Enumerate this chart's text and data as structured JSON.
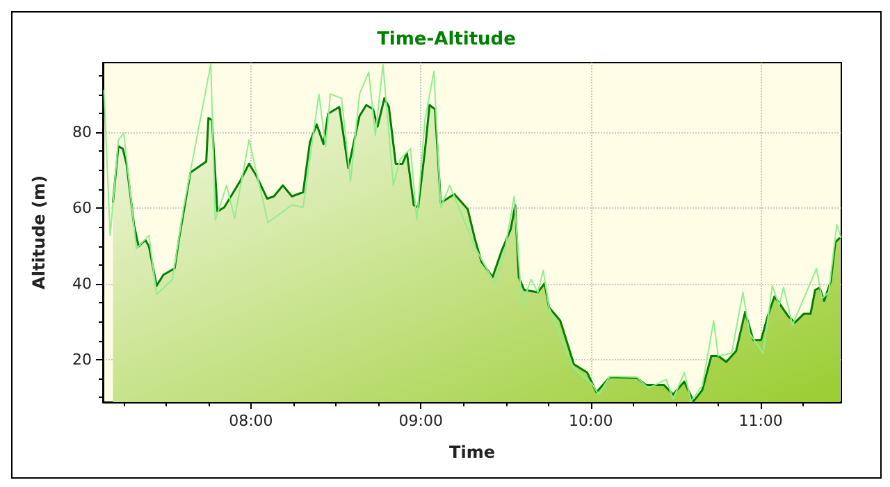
{
  "chart_data": {
    "type": "area",
    "title": "Time-Altitude",
    "xlabel": "Time",
    "ylabel": "Altitude (m)",
    "xlim": [
      7.129,
      11.474
    ],
    "ylim": [
      8.8,
      98.4
    ],
    "xticks": [
      {
        "value": 8,
        "label": "08:00"
      },
      {
        "value": 9,
        "label": "09:00"
      },
      {
        "value": 10,
        "label": "10:00"
      },
      {
        "value": 11,
        "label": "11:00"
      }
    ],
    "yticks": [
      20,
      40,
      60,
      80
    ],
    "grid": true,
    "marker": "none",
    "line_style": "solid",
    "series": [
      {
        "type": "line",
        "color": "#90ee90",
        "x": [
          7.135,
          7.172,
          7.22,
          7.252,
          7.326,
          7.4,
          7.445,
          7.538,
          7.604,
          7.764,
          7.79,
          7.857,
          7.904,
          7.989,
          8.1,
          8.241,
          8.307,
          8.4,
          8.44,
          8.467,
          8.533,
          8.586,
          8.639,
          8.693,
          8.732,
          8.777,
          8.838,
          8.878,
          8.939,
          8.976,
          9.024,
          9.077,
          9.117,
          9.17,
          9.316,
          9.435,
          9.489,
          9.549,
          9.595,
          9.648,
          9.688,
          9.72,
          9.754,
          9.9,
          10.006,
          10.046,
          10.112,
          10.272,
          10.338,
          10.444,
          10.484,
          10.55,
          10.59,
          10.656,
          10.723,
          10.749,
          10.829,
          10.895,
          10.935,
          11.014,
          11.068,
          11.108,
          11.134,
          11.187,
          11.328,
          11.36,
          11.4,
          11.447,
          11.473
        ],
        "values": [
          91.2,
          52.8,
          78,
          79.8,
          49.3,
          52.8,
          37.2,
          41.2,
          60.2,
          98.1,
          56.8,
          66,
          57.3,
          78,
          56.2,
          60.8,
          60.2,
          90.1,
          76.3,
          90.1,
          89,
          67.1,
          90.1,
          95.9,
          79.2,
          97.9,
          66,
          72.9,
          75.7,
          56.8,
          83.2,
          96.1,
          60.2,
          66,
          49.9,
          40.1,
          47.6,
          63.1,
          34.3,
          41.2,
          37.8,
          43.6,
          33.8,
          17.7,
          13.7,
          10.8,
          15.6,
          15.4,
          12.5,
          14.8,
          9.6,
          16.6,
          9.1,
          13.1,
          30.3,
          21,
          21.7,
          37.8,
          26.9,
          21.7,
          39.5,
          34.3,
          39,
          29.2,
          44.1,
          36.1,
          37.8,
          55.6,
          52.2
        ]
      },
      {
        "color": "#008000",
        "x": [
          7.188,
          7.22,
          7.246,
          7.268,
          7.312,
          7.339,
          7.379,
          7.4,
          7.445,
          7.485,
          7.551,
          7.578,
          7.644,
          7.737,
          7.75,
          7.771,
          7.803,
          7.843,
          7.936,
          7.989,
          8.029,
          8.096,
          8.135,
          8.188,
          8.241,
          8.307,
          8.347,
          8.387,
          8.427,
          8.454,
          8.52,
          8.573,
          8.639,
          8.679,
          8.719,
          8.745,
          8.785,
          8.812,
          8.852,
          8.892,
          8.918,
          8.958,
          8.984,
          9.024,
          9.051,
          9.083,
          9.117,
          9.197,
          9.276,
          9.316,
          9.356,
          9.422,
          9.475,
          9.529,
          9.555,
          9.576,
          9.608,
          9.688,
          9.728,
          9.754,
          9.82,
          9.86,
          9.9,
          9.979,
          10.033,
          10.112,
          10.272,
          10.325,
          10.431,
          10.484,
          10.55,
          10.604,
          10.656,
          10.709,
          10.749,
          10.797,
          10.855,
          10.908,
          10.956,
          11.002,
          11.041,
          11.081,
          11.161,
          11.201,
          11.253,
          11.293,
          11.32,
          11.346,
          11.373,
          11.412,
          11.439,
          11.466
        ],
        "values": [
          61.4,
          76.3,
          75.7,
          71.7,
          55.6,
          49.9,
          51.6,
          49.9,
          39.5,
          42.4,
          44.1,
          52.2,
          69.4,
          72.3,
          83.8,
          83.2,
          59.1,
          60.2,
          67.1,
          71.7,
          68.8,
          62.5,
          63.1,
          66,
          63.1,
          64.2,
          77.4,
          82.1,
          76.9,
          84.9,
          86.7,
          70.6,
          84.3,
          87.2,
          86.1,
          81.5,
          89,
          86.7,
          71.7,
          71.7,
          74.6,
          60.8,
          60.2,
          75.2,
          87.2,
          86.1,
          61.4,
          63.7,
          59.7,
          52.2,
          45.9,
          41.8,
          48.7,
          54.5,
          60.8,
          41.8,
          38.4,
          37.8,
          40.1,
          33.8,
          30.3,
          24.6,
          18.8,
          16.6,
          11.4,
          15.4,
          15.2,
          13.3,
          13.3,
          10.8,
          14.2,
          9,
          12,
          21,
          21,
          19.4,
          22.3,
          32.6,
          25.2,
          25.2,
          31.5,
          36.7,
          31.5,
          29.8,
          32.1,
          32.1,
          38.4,
          39,
          35.5,
          40.7,
          51,
          52.2
        ]
      }
    ]
  }
}
